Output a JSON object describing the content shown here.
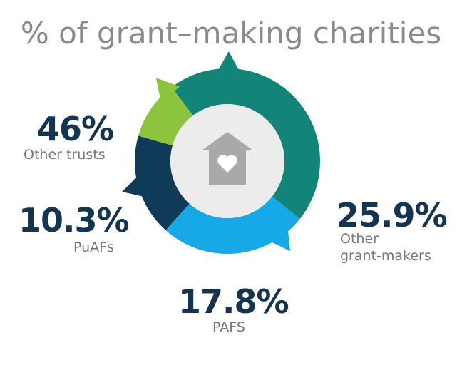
{
  "chart_data": {
    "type": "pie",
    "title": "% of grant–making charities",
    "slices": [
      {
        "label": "Other trusts",
        "value": 46,
        "value_label": "46%",
        "color": "#138478"
      },
      {
        "label": "Other grant-makers",
        "value": 25.9,
        "value_label": "25.9%",
        "color": "#16a8e7"
      },
      {
        "label": "PAFS",
        "value": 17.8,
        "value_label": "17.8%",
        "color": "#0f3a58"
      },
      {
        "label": "PuAFs",
        "value": 10.3,
        "value_label": "10.3%",
        "color": "#8cc43e"
      }
    ],
    "center_icon": "house-heart-icon",
    "center_icon_color": "#a9a9a9",
    "center_color": "#ececec"
  }
}
